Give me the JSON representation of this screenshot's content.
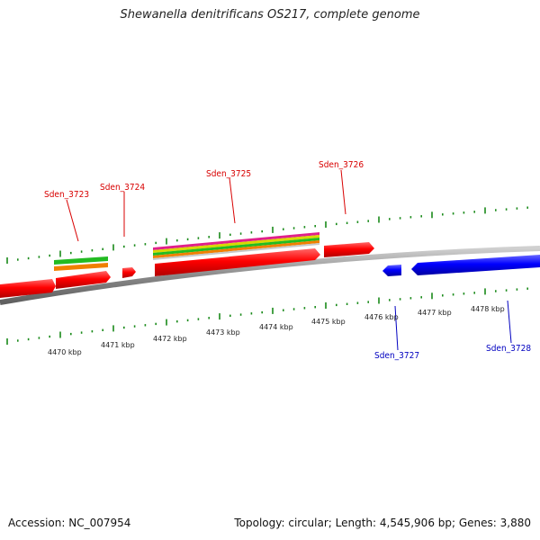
{
  "title": "Shewanella denitrificans OS217, complete genome",
  "footer": {
    "accession": "Accession: NC_007954",
    "summary": "Topology: circular; Length: 4,545,906 bp; Genes: 3,880"
  },
  "scale_labels": [
    "4470 kbp",
    "4471 kbp",
    "4472 kbp",
    "4473 kbp",
    "4474 kbp",
    "4475 kbp",
    "4476 kbp",
    "4477 kbp",
    "4478 kbp"
  ],
  "genes": [
    {
      "name": "Sden_3723",
      "color": "#d80000"
    },
    {
      "name": "Sden_3724",
      "color": "#d80000"
    },
    {
      "name": "Sden_3725",
      "color": "#d80000"
    },
    {
      "name": "Sden_3726",
      "color": "#d80000"
    },
    {
      "name": "Sden_3727",
      "color": "#0000c0"
    },
    {
      "name": "Sden_3728",
      "color": "#0000c0"
    }
  ],
  "colors": {
    "forward_gene": "#ff0000",
    "reverse_gene": "#0000ff",
    "backbone": "#8a8a8a",
    "tick": "#1a8a1a",
    "feature_green": "#22bb22",
    "feature_orange": "#f08000",
    "feature_magenta": "#e0208a",
    "feature_yellow": "#d8d800"
  }
}
